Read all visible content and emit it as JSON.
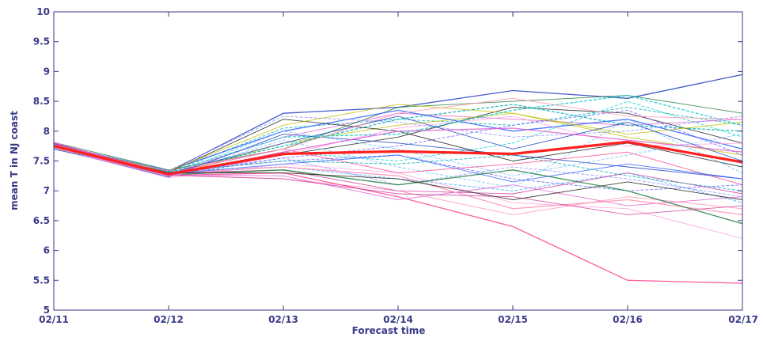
{
  "chart_data": {
    "type": "line",
    "title": "",
    "xlabel": "Forecast time",
    "ylabel": "mean T in NJ coast",
    "categories": [
      "02/11",
      "02/12",
      "02/13",
      "02/14",
      "02/15",
      "02/16",
      "02/17"
    ],
    "yticks": [
      "5",
      "5.5",
      "6",
      "6.5",
      "7",
      "7.5",
      "8",
      "8.5",
      "9",
      "9.5",
      "10"
    ],
    "ylim": [
      5,
      10
    ],
    "grid": false,
    "legend": "none",
    "colors": {
      "axis": "#3a3a8a",
      "ensemble_mean": "#ff2020",
      "palette": [
        "#1f3fbf",
        "#00b0b0",
        "#e060d0",
        "#202020",
        "#70c0ff",
        "#ff8fb0",
        "#c0c000",
        "#6060ff",
        "#ff4090",
        "#208040",
        "#9090ff",
        "#ffa0e0",
        "#3060ff",
        "#00d0d0",
        "#d040a0"
      ]
    },
    "mean_series": {
      "values": [
        7.75,
        7.28,
        7.62,
        7.66,
        7.62,
        7.82,
        7.48
      ]
    },
    "ensemble": [
      [
        7.78,
        7.32,
        8.3,
        8.4,
        8.68,
        8.55,
        8.95
      ],
      [
        7.74,
        7.3,
        8.05,
        8.2,
        8.1,
        8.4,
        8.1
      ],
      [
        7.8,
        7.28,
        7.9,
        8.3,
        8.2,
        8.1,
        8.2
      ],
      [
        7.7,
        7.25,
        7.6,
        7.9,
        8.4,
        8.3,
        7.8
      ],
      [
        7.77,
        7.33,
        7.4,
        7.2,
        7.0,
        7.3,
        6.8
      ],
      [
        7.72,
        7.27,
        7.2,
        7.0,
        6.6,
        6.9,
        6.7
      ],
      [
        7.79,
        7.24,
        7.8,
        8.1,
        8.3,
        7.9,
        7.6
      ],
      [
        7.76,
        7.31,
        7.5,
        7.6,
        7.2,
        7.0,
        7.1
      ],
      [
        7.73,
        7.26,
        7.3,
        6.9,
        6.4,
        5.5,
        5.45
      ],
      [
        7.81,
        7.35,
        7.7,
        8.4,
        8.5,
        8.6,
        8.3
      ],
      [
        7.75,
        7.29,
        7.55,
        7.1,
        7.4,
        7.2,
        6.9
      ],
      [
        7.71,
        7.22,
        7.45,
        7.3,
        6.8,
        6.7,
        6.2
      ],
      [
        7.78,
        7.34,
        8.0,
        8.35,
        8.0,
        8.2,
        7.7
      ],
      [
        7.74,
        7.28,
        7.65,
        7.5,
        7.8,
        8.5,
        7.9
      ],
      [
        7.8,
        7.3,
        7.35,
        7.0,
        6.95,
        7.3,
        6.95
      ],
      [
        7.72,
        7.23,
        7.95,
        7.8,
        7.6,
        7.4,
        7.2
      ],
      [
        7.76,
        7.32,
        7.75,
        8.2,
        8.45,
        8.1,
        8.0
      ],
      [
        7.7,
        7.27,
        7.25,
        6.85,
        7.1,
        6.75,
        6.9
      ],
      [
        7.79,
        7.31,
        8.2,
        8.0,
        7.5,
        7.8,
        7.4
      ],
      [
        7.75,
        7.26,
        7.85,
        7.4,
        7.05,
        8.2,
        7.3
      ],
      [
        7.73,
        7.29,
        7.4,
        7.25,
        6.7,
        6.85,
        6.6
      ],
      [
        7.77,
        7.33,
        8.1,
        8.45,
        8.3,
        7.95,
        8.15
      ],
      [
        7.71,
        7.25,
        7.55,
        7.75,
        8.1,
        8.35,
        7.6
      ],
      [
        7.8,
        7.3,
        7.7,
        7.3,
        7.45,
        7.65,
        7.1
      ],
      [
        7.74,
        7.27,
        7.35,
        7.1,
        7.35,
        7.0,
        6.45
      ],
      [
        7.78,
        7.34,
        8.25,
        8.15,
        7.9,
        8.0,
        8.25
      ],
      [
        7.72,
        7.24,
        7.6,
        8.05,
        8.25,
        7.75,
        7.8
      ],
      [
        7.76,
        7.28,
        7.45,
        7.6,
        7.15,
        7.45,
        7.2
      ],
      [
        7.73,
        7.31,
        7.9,
        7.95,
        8.35,
        8.6,
        8.1
      ],
      [
        7.79,
        7.26,
        7.2,
        6.95,
        6.9,
        6.6,
        6.75
      ],
      [
        7.75,
        7.29,
        7.8,
        8.25,
        7.7,
        8.15,
        7.5
      ],
      [
        7.7,
        7.32,
        7.5,
        7.45,
        7.6,
        7.25,
        7.0
      ],
      [
        7.81,
        7.25,
        7.65,
        8.0,
        8.05,
        7.85,
        7.65
      ],
      [
        7.74,
        7.3,
        7.3,
        7.2,
        6.85,
        7.15,
        6.85
      ],
      [
        7.77,
        7.27,
        8.0,
        7.7,
        7.25,
        7.6,
        7.95
      ],
      [
        7.72,
        7.33,
        7.7,
        8.3,
        8.55,
        8.25,
        8.2
      ]
    ]
  }
}
